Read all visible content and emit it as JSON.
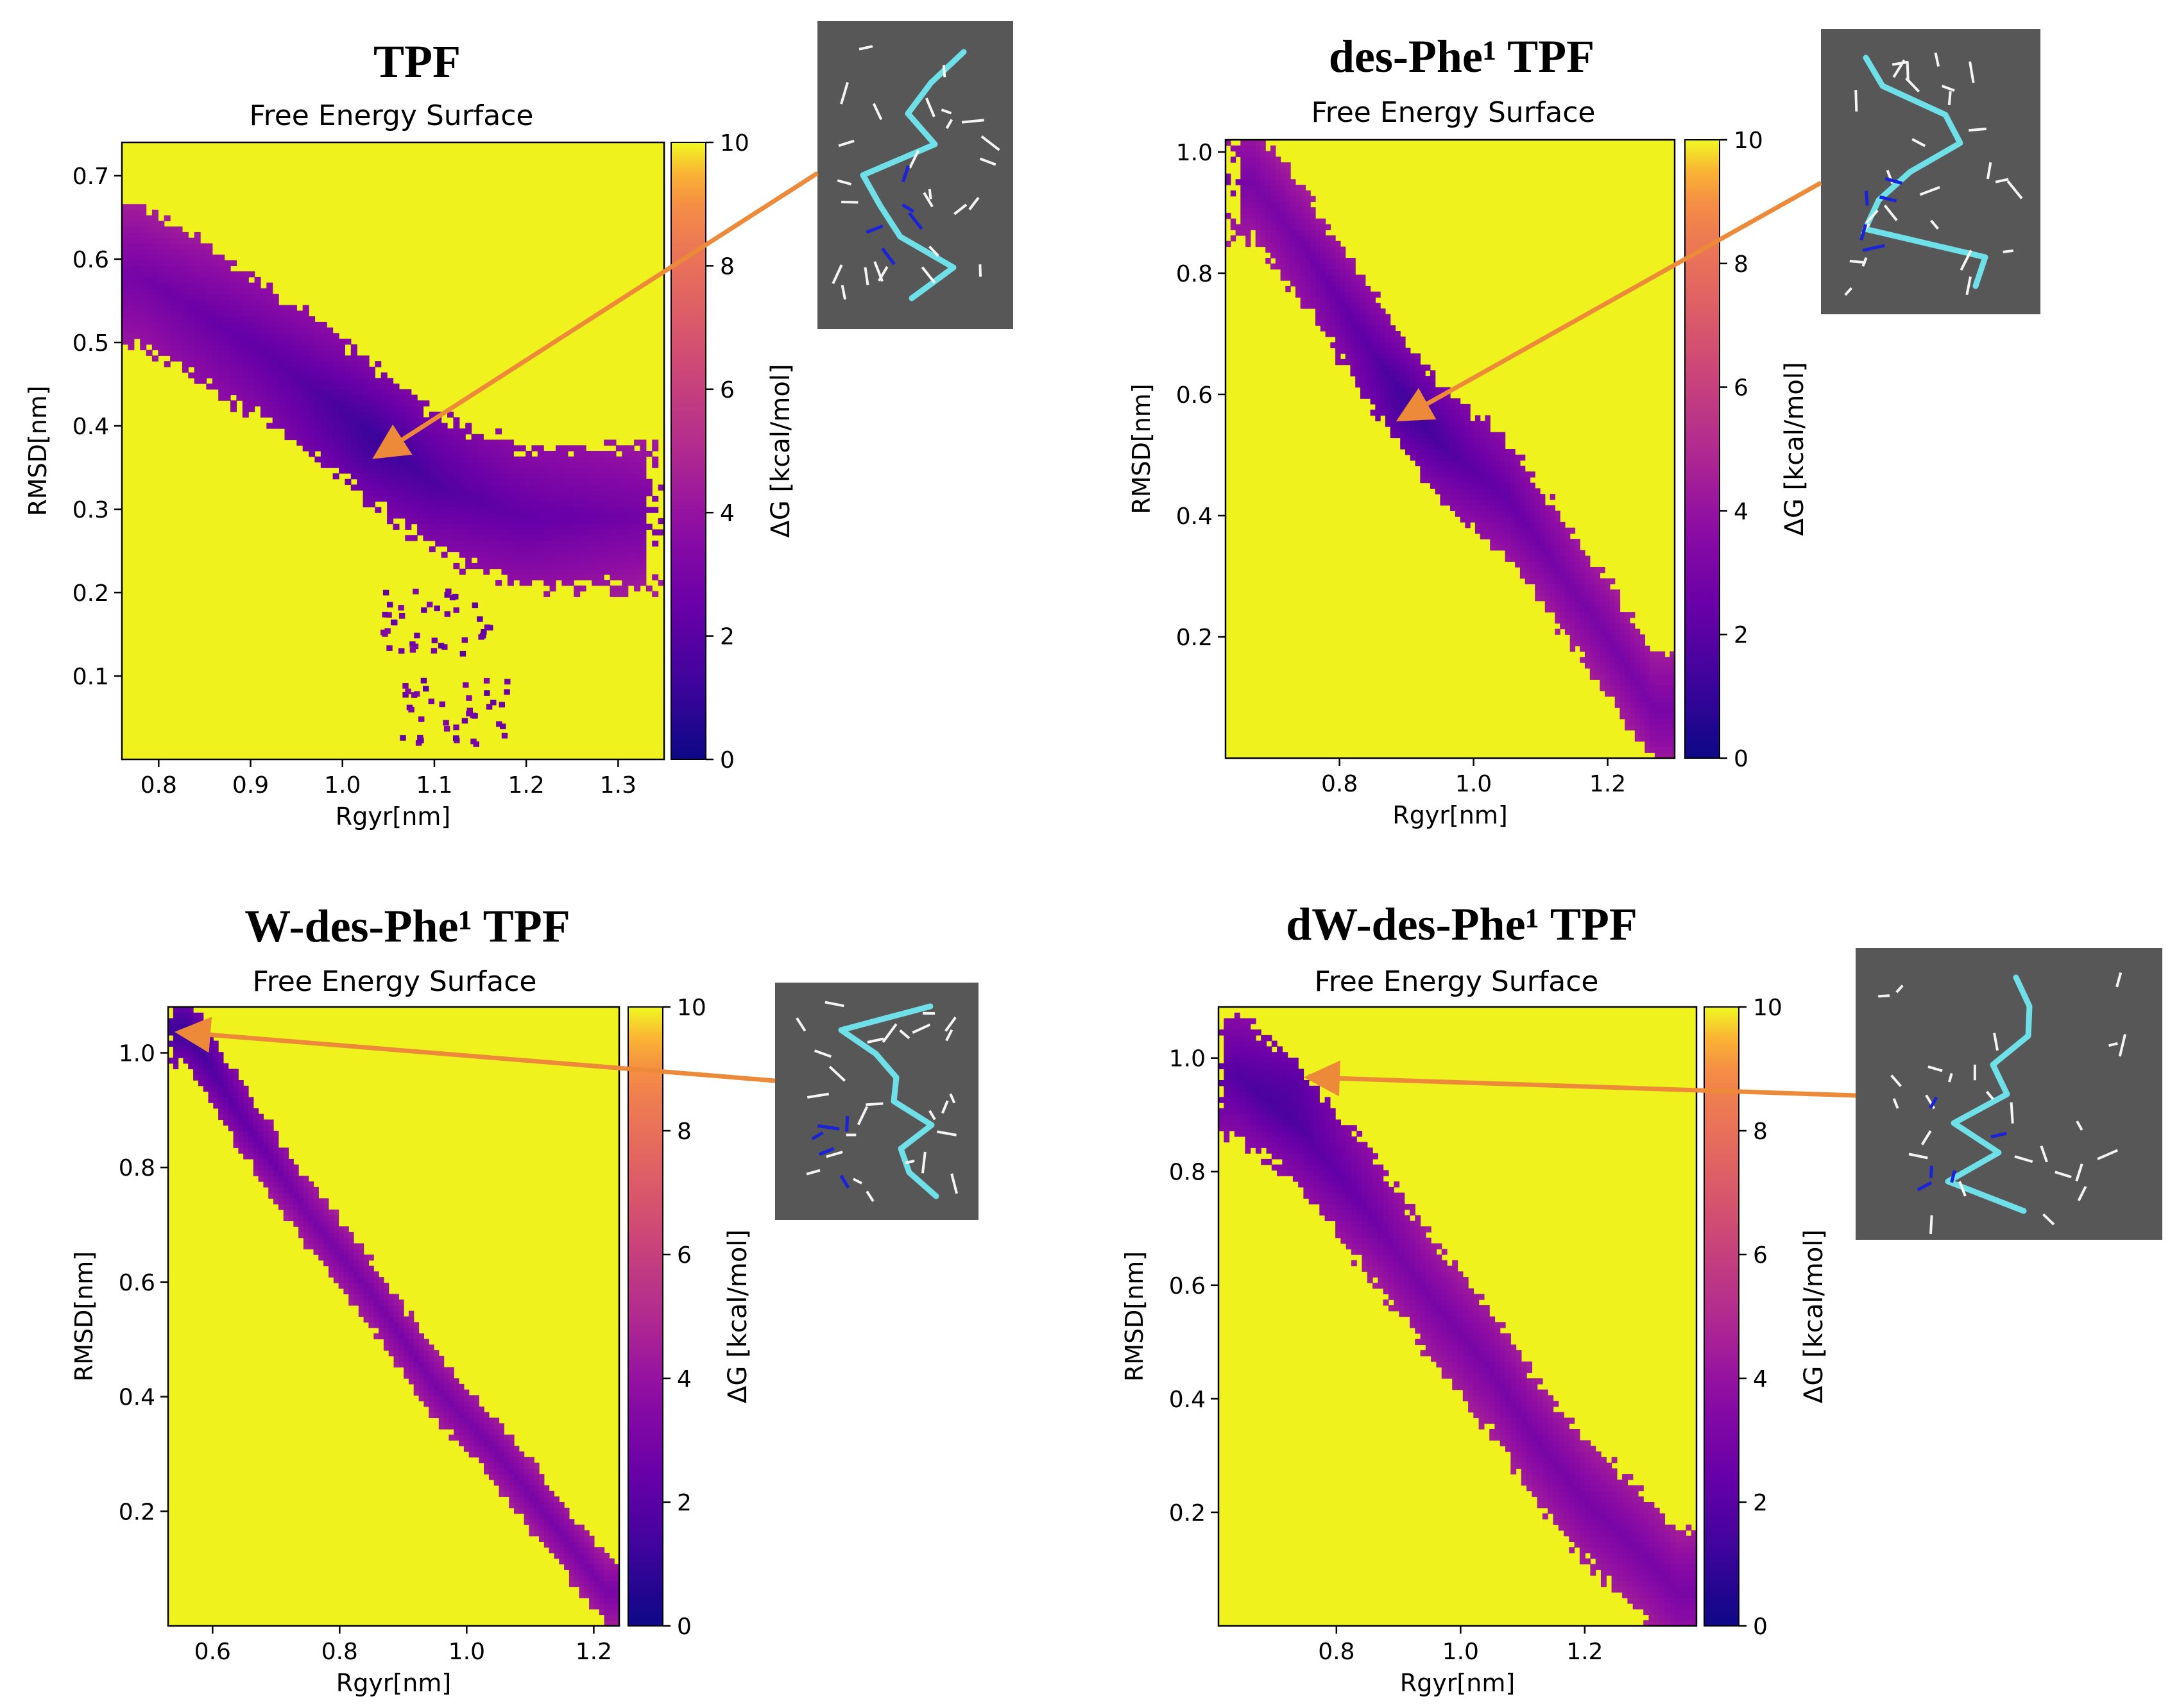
{
  "figure": {
    "colors": {
      "background_high": "#eff21c",
      "arrow": "#ec8a3a",
      "inset_bg": "#575757",
      "axes": "#000000"
    },
    "colormap_name": "plasma",
    "colorbar": {
      "label": "ΔG [kcal/mol]",
      "ticks": [
        "0",
        "2",
        "4",
        "6",
        "8",
        "10"
      ]
    }
  },
  "chart_data": [
    {
      "type": "heatmap",
      "panel_title": "TPF",
      "title": "Free Energy Surface",
      "xlabel": "Rgyr[nm]",
      "ylabel": "RMSD[nm]",
      "xlim": [
        0.76,
        1.35
      ],
      "ylim": [
        0.0,
        0.74
      ],
      "xticks": [
        0.8,
        0.9,
        1.0,
        1.1,
        1.2,
        1.3
      ],
      "xtick_labels": [
        "0.8",
        "0.9",
        "1.0",
        "1.1",
        "1.2",
        "1.3"
      ],
      "yticks": [
        0.1,
        0.2,
        0.3,
        0.4,
        0.5,
        0.6,
        0.7
      ],
      "ytick_labels": [
        "0.1",
        "0.2",
        "0.3",
        "0.4",
        "0.5",
        "0.6",
        "0.7"
      ],
      "colorbar_range_kcal_mol": [
        0,
        10
      ],
      "low_energy_band": [
        [
          0.78,
          0.58
        ],
        [
          0.9,
          0.5
        ],
        [
          1.0,
          0.42
        ],
        [
          1.1,
          0.33
        ],
        [
          1.2,
          0.29
        ],
        [
          1.3,
          0.29
        ]
      ],
      "band_halfwidth": 0.07,
      "minimum": {
        "rgyr": 1.03,
        "rmsd": 0.37,
        "dG": 0.5
      },
      "sparse_tail": [
        [
          1.1,
          0.17
        ],
        [
          1.12,
          0.06
        ]
      ]
    },
    {
      "type": "heatmap",
      "panel_title": "des-Phe¹ TPF",
      "title": "Free Energy Surface",
      "xlabel": "Rgyr[nm]",
      "ylabel": "RMSD[nm]",
      "xlim": [
        0.63,
        1.3
      ],
      "ylim": [
        0.0,
        1.02
      ],
      "xticks": [
        0.8,
        1.0,
        1.2
      ],
      "xtick_labels": [
        "0.8",
        "1.0",
        "1.2"
      ],
      "yticks": [
        0.2,
        0.4,
        0.6,
        0.8,
        1.0
      ],
      "ytick_labels": [
        "0.2",
        "0.4",
        "0.6",
        "0.8",
        "1.0"
      ],
      "colorbar_range_kcal_mol": [
        0,
        10
      ],
      "low_energy_band": [
        [
          0.67,
          0.95
        ],
        [
          0.75,
          0.84
        ],
        [
          0.85,
          0.67
        ],
        [
          0.95,
          0.52
        ],
        [
          1.05,
          0.43
        ],
        [
          1.12,
          0.32
        ],
        [
          1.2,
          0.2
        ],
        [
          1.27,
          0.08
        ]
      ],
      "band_halfwidth": 0.08,
      "minimum": {
        "rgyr": 0.89,
        "rmsd": 0.56,
        "dG": 0.4
      }
    },
    {
      "type": "heatmap",
      "panel_title": "W-des-Phe¹ TPF",
      "title": "Free Energy Surface",
      "xlabel": "Rgyr[nm]",
      "ylabel": "RMSD[nm]",
      "xlim": [
        0.53,
        1.24
      ],
      "ylim": [
        0.0,
        1.08
      ],
      "xticks": [
        0.6,
        0.8,
        1.0,
        1.2
      ],
      "xtick_labels": [
        "0.6",
        "0.8",
        "1.0",
        "1.2"
      ],
      "yticks": [
        0.2,
        0.4,
        0.6,
        0.8,
        1.0
      ],
      "ytick_labels": [
        "0.2",
        "0.4",
        "0.6",
        "0.8",
        "1.0"
      ],
      "colorbar_range_kcal_mol": [
        0,
        10
      ],
      "low_energy_band": [
        [
          0.56,
          1.04
        ],
        [
          0.65,
          0.88
        ],
        [
          0.75,
          0.72
        ],
        [
          0.85,
          0.58
        ],
        [
          0.95,
          0.42
        ],
        [
          1.05,
          0.3
        ],
        [
          1.15,
          0.16
        ],
        [
          1.22,
          0.06
        ]
      ],
      "band_halfwidth": 0.05,
      "minimum": {
        "rgyr": 0.56,
        "rmsd": 1.04,
        "dG": 0.3
      }
    },
    {
      "type": "heatmap",
      "panel_title": "dW-des-Phe¹ TPF",
      "title": "Free Energy Surface",
      "xlabel": "Rgyr[nm]",
      "ylabel": "RMSD[nm]",
      "xlim": [
        0.61,
        1.38
      ],
      "ylim": [
        0.0,
        1.09
      ],
      "xticks": [
        0.8,
        1.0,
        1.2
      ],
      "xtick_labels": [
        "0.8",
        "1.0",
        "1.2"
      ],
      "yticks": [
        0.2,
        0.4,
        0.6,
        0.8,
        1.0
      ],
      "ytick_labels": [
        "0.2",
        "0.4",
        "0.6",
        "0.8",
        "1.0"
      ],
      "colorbar_range_kcal_mol": [
        0,
        10
      ],
      "low_energy_band": [
        [
          0.64,
          0.97
        ],
        [
          0.74,
          0.88
        ],
        [
          0.85,
          0.73
        ],
        [
          0.95,
          0.58
        ],
        [
          1.05,
          0.45
        ],
        [
          1.12,
          0.33
        ],
        [
          1.2,
          0.22
        ],
        [
          1.3,
          0.12
        ],
        [
          1.35,
          0.06
        ]
      ],
      "band_halfwidth": 0.09,
      "minimum": {
        "rgyr": 0.74,
        "rmsd": 0.97,
        "dG": 0.4
      }
    }
  ]
}
